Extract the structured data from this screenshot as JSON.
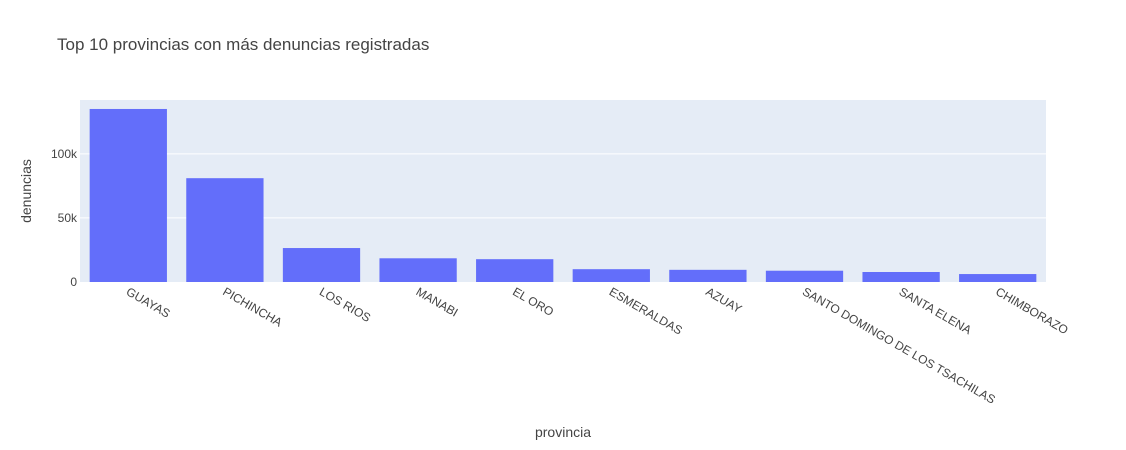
{
  "chart_data": {
    "type": "bar",
    "title": "Top 10 provincias con más denuncias registradas",
    "xlabel": "provincia",
    "ylabel": "denuncias",
    "categories": [
      "GUAYAS",
      "PICHINCHA",
      "LOS RIOS",
      "MANABI",
      "EL ORO",
      "ESMERALDAS",
      "AZUAY",
      "SANTO DOMINGO DE LOS TSACHILAS",
      "SANTA ELENA",
      "CHIMBORAZO"
    ],
    "values": [
      135000,
      81000,
      26500,
      18500,
      17800,
      10000,
      9500,
      8800,
      7800,
      6200
    ],
    "ylim": [
      0,
      142000
    ],
    "yticks": [
      0,
      50000,
      100000
    ],
    "ytick_labels": [
      "0",
      "50k",
      "100k"
    ],
    "grid": true,
    "legend": "none",
    "colors": {
      "bar": "#636efa",
      "plot_bg": "#e5ecf6",
      "grid": "#ffffff"
    }
  }
}
